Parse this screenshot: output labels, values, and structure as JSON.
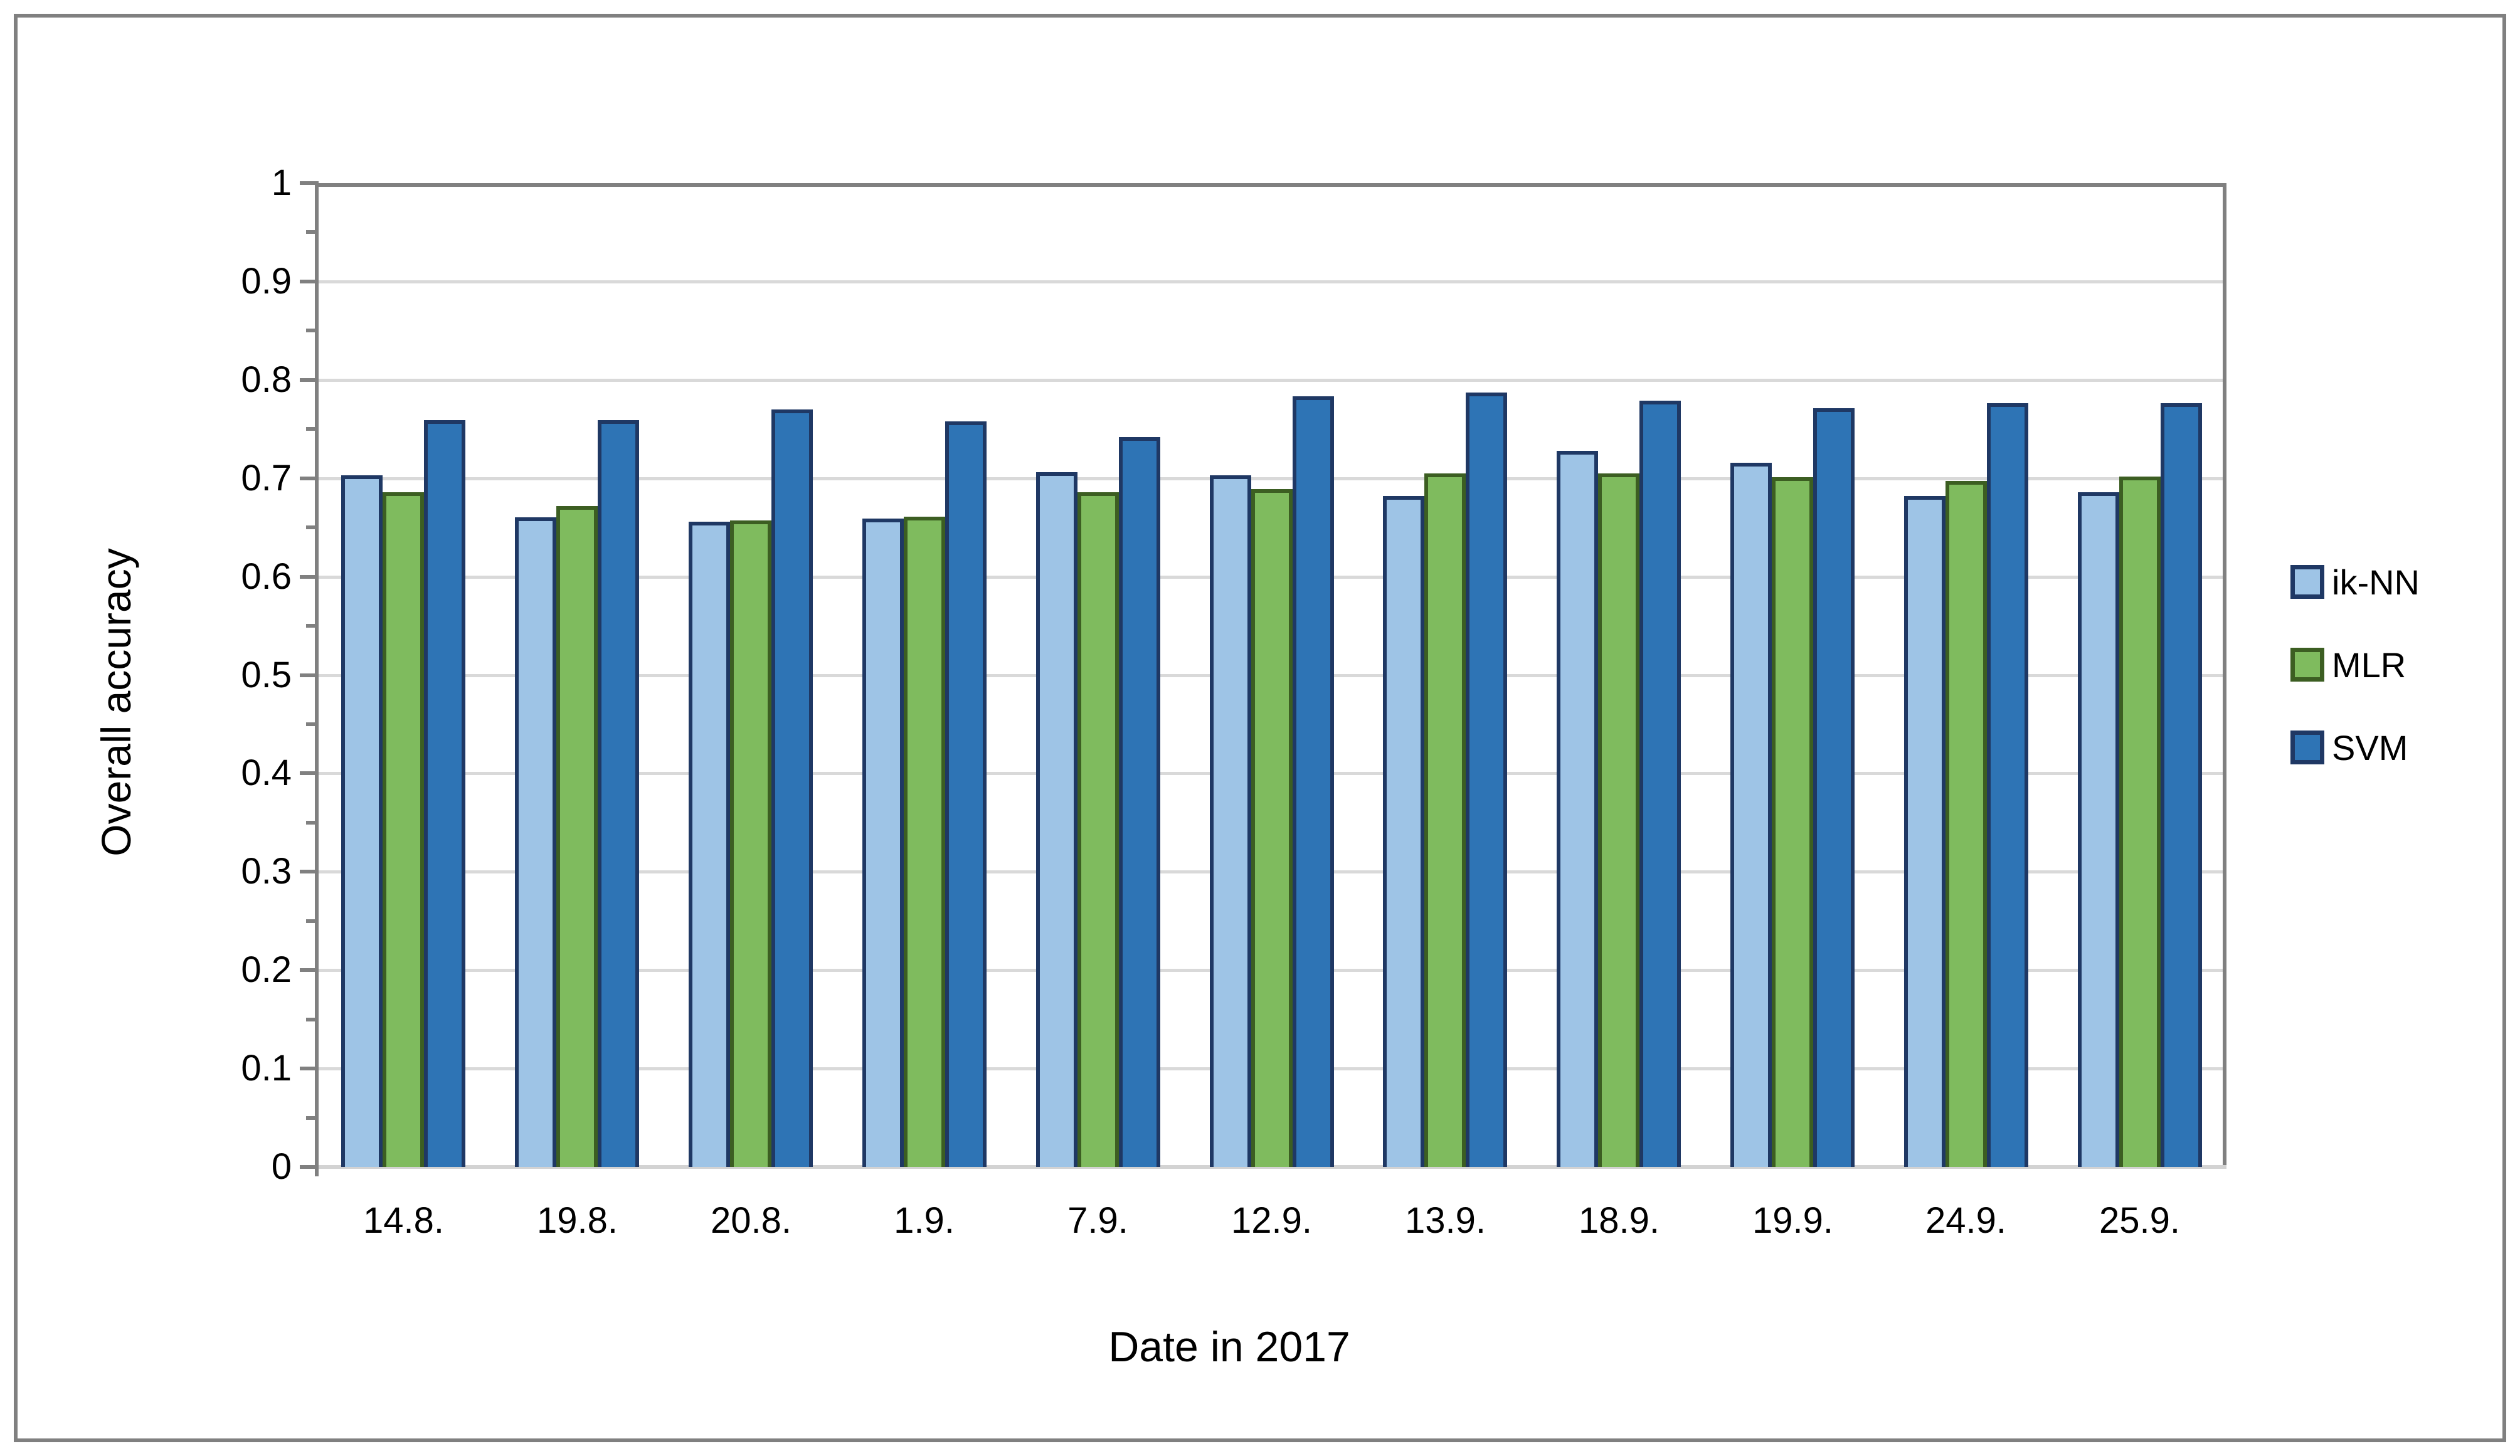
{
  "figure": {
    "background": "#FFFFFF",
    "outer_border_color": "#808080"
  },
  "chart_data": {
    "type": "bar",
    "title": "",
    "xlabel": "Date in 2017",
    "ylabel": "Overall accuracy",
    "categories": [
      "14.8.",
      "19.8.",
      "20.8.",
      "1.9.",
      "7.9.",
      "12.9.",
      "13.9.",
      "18.9.",
      "19.9.",
      "24.9.",
      "25.9."
    ],
    "series": [
      {
        "name": "ik-NN",
        "fill": "#9EC4E6",
        "border": "#1F3864",
        "values": [
          0.703,
          0.66,
          0.656,
          0.659,
          0.706,
          0.703,
          0.682,
          0.728,
          0.716,
          0.682,
          0.686
        ]
      },
      {
        "name": "MLR",
        "fill": "#7FBB5E",
        "border": "#3C5E22",
        "values": [
          0.686,
          0.672,
          0.657,
          0.661,
          0.686,
          0.689,
          0.705,
          0.705,
          0.701,
          0.697,
          0.702
        ]
      },
      {
        "name": "SVM",
        "fill": "#2E74B5",
        "border": "#1F3864",
        "values": [
          0.759,
          0.759,
          0.77,
          0.758,
          0.742,
          0.783,
          0.787,
          0.779,
          0.771,
          0.776,
          0.776
        ]
      }
    ],
    "y_axis": {
      "min": 0,
      "max": 1,
      "major_step": 0.1,
      "minor_step": 0.05,
      "tick_labels": [
        "1",
        "0.9",
        "0.8",
        "0.7",
        "0.6",
        "0.5",
        "0.4",
        "0.3",
        "0.2",
        "0.1",
        "0"
      ]
    },
    "legend_position": "right",
    "grid": true,
    "colors": {
      "gridline": "#D9D9D9",
      "axis": "#808080",
      "x_axis_line": "#D3D3D3",
      "text": "#000000"
    }
  }
}
